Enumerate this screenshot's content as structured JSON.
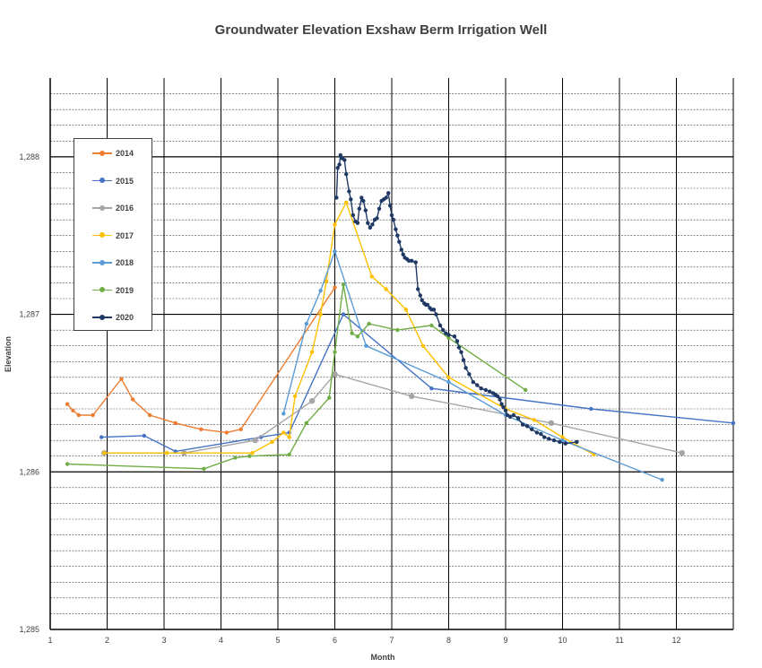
{
  "chart_data": {
    "type": "line",
    "title": "Groundwater Elevation Exshaw Berm Irrigation Well",
    "xlabel": "Month",
    "ylabel": "Elevation",
    "xlim": [
      1,
      13
    ],
    "ylim": [
      1285,
      1288.5
    ],
    "x_ticks": [
      "1",
      "2",
      "3",
      "4",
      "5",
      "6",
      "7",
      "8",
      "9",
      "10",
      "11",
      "12"
    ],
    "y_ticks": [
      "1,285",
      "1,286",
      "1,287",
      "1,288"
    ],
    "grid": true,
    "legend_position": "left",
    "series": [
      {
        "name": "2014",
        "color": "#ED7D31",
        "points": [
          [
            1.3,
            1286.43
          ],
          [
            1.4,
            1286.39
          ],
          [
            1.5,
            1286.36
          ],
          [
            1.75,
            1286.36
          ],
          [
            2.25,
            1286.59
          ],
          [
            2.45,
            1286.46
          ],
          [
            2.75,
            1286.36
          ],
          [
            3.2,
            1286.31
          ],
          [
            3.65,
            1286.27
          ],
          [
            4.1,
            1286.25
          ],
          [
            4.35,
            1286.27
          ],
          [
            6.0,
            1287.17
          ]
        ]
      },
      {
        "name": "2015",
        "color": "#4472C4",
        "points": [
          [
            1.9,
            1286.22
          ],
          [
            2.65,
            1286.23
          ],
          [
            3.2,
            1286.13
          ],
          [
            4.7,
            1286.22
          ],
          [
            5.2,
            1286.25
          ],
          [
            6.15,
            1287.0
          ],
          [
            7.7,
            1286.53
          ],
          [
            10.5,
            1286.4
          ],
          [
            13.0,
            1286.31
          ]
        ]
      },
      {
        "name": "2016",
        "color": "#A5A5A5",
        "points": [
          [
            1.95,
            1286.12
          ],
          [
            3.35,
            1286.12
          ],
          [
            4.6,
            1286.2
          ],
          [
            5.6,
            1286.45
          ],
          [
            6.0,
            1286.62
          ],
          [
            7.35,
            1286.48
          ],
          [
            9.8,
            1286.31
          ],
          [
            12.1,
            1286.12
          ]
        ]
      },
      {
        "name": "2017",
        "color": "#FFC000",
        "points": [
          [
            1.95,
            1286.12
          ],
          [
            3.05,
            1286.12
          ],
          [
            4.55,
            1286.12
          ],
          [
            4.9,
            1286.19
          ],
          [
            5.1,
            1286.25
          ],
          [
            5.2,
            1286.22
          ],
          [
            5.3,
            1286.48
          ],
          [
            5.6,
            1286.76
          ],
          [
            5.75,
            1287.0
          ],
          [
            5.85,
            1287.21
          ],
          [
            6.0,
            1287.57
          ],
          [
            6.2,
            1287.71
          ],
          [
            6.65,
            1287.24
          ],
          [
            6.9,
            1287.16
          ],
          [
            7.25,
            1287.03
          ],
          [
            7.55,
            1286.8
          ],
          [
            8.0,
            1286.6
          ],
          [
            9.0,
            1286.4
          ],
          [
            9.5,
            1286.33
          ],
          [
            10.0,
            1286.22
          ],
          [
            10.55,
            1286.11
          ]
        ]
      },
      {
        "name": "2018",
        "color": "#5B9BD5",
        "points": [
          [
            5.1,
            1286.37
          ],
          [
            5.5,
            1286.94
          ],
          [
            5.75,
            1287.15
          ],
          [
            6.0,
            1287.4
          ],
          [
            6.55,
            1286.8
          ],
          [
            8.0,
            1286.57
          ],
          [
            9.0,
            1286.36
          ],
          [
            10.0,
            1286.2
          ],
          [
            11.75,
            1285.95
          ]
        ]
      },
      {
        "name": "2019",
        "color": "#70AD47",
        "points": [
          [
            1.3,
            1286.05
          ],
          [
            3.7,
            1286.02
          ],
          [
            4.25,
            1286.09
          ],
          [
            4.5,
            1286.1
          ],
          [
            5.2,
            1286.11
          ],
          [
            5.5,
            1286.31
          ],
          [
            5.9,
            1286.47
          ],
          [
            6.0,
            1286.76
          ],
          [
            6.15,
            1287.19
          ],
          [
            6.3,
            1286.88
          ],
          [
            6.4,
            1286.86
          ],
          [
            6.6,
            1286.94
          ],
          [
            7.1,
            1286.9
          ],
          [
            7.7,
            1286.93
          ],
          [
            8.0,
            1286.85
          ],
          [
            9.35,
            1286.52
          ]
        ]
      },
      {
        "name": "2020",
        "color": "#1F3864",
        "points": [
          [
            6.03,
            1287.74
          ],
          [
            6.05,
            1287.93
          ],
          [
            6.08,
            1287.95
          ],
          [
            6.1,
            1288.01
          ],
          [
            6.13,
            1287.99
          ],
          [
            6.17,
            1287.98
          ],
          [
            6.2,
            1287.89
          ],
          [
            6.25,
            1287.78
          ],
          [
            6.28,
            1287.73
          ],
          [
            6.32,
            1287.63
          ],
          [
            6.36,
            1287.59
          ],
          [
            6.4,
            1287.58
          ],
          [
            6.43,
            1287.67
          ],
          [
            6.47,
            1287.74
          ],
          [
            6.5,
            1287.72
          ],
          [
            6.54,
            1287.66
          ],
          [
            6.58,
            1287.58
          ],
          [
            6.62,
            1287.55
          ],
          [
            6.66,
            1287.57
          ],
          [
            6.7,
            1287.6
          ],
          [
            6.74,
            1287.61
          ],
          [
            6.78,
            1287.67
          ],
          [
            6.82,
            1287.72
          ],
          [
            6.86,
            1287.73
          ],
          [
            6.9,
            1287.74
          ],
          [
            6.94,
            1287.77
          ],
          [
            6.97,
            1287.69
          ],
          [
            7.0,
            1287.63
          ],
          [
            7.03,
            1287.6
          ],
          [
            7.07,
            1287.54
          ],
          [
            7.1,
            1287.5
          ],
          [
            7.13,
            1287.46
          ],
          [
            7.17,
            1287.41
          ],
          [
            7.2,
            1287.38
          ],
          [
            7.23,
            1287.36
          ],
          [
            7.27,
            1287.35
          ],
          [
            7.3,
            1287.34
          ],
          [
            7.35,
            1287.34
          ],
          [
            7.42,
            1287.33
          ],
          [
            7.46,
            1287.16
          ],
          [
            7.5,
            1287.12
          ],
          [
            7.53,
            1287.09
          ],
          [
            7.57,
            1287.07
          ],
          [
            7.6,
            1287.06
          ],
          [
            7.63,
            1287.06
          ],
          [
            7.67,
            1287.04
          ],
          [
            7.7,
            1287.03
          ],
          [
            7.74,
            1287.03
          ],
          [
            7.78,
            1287.0
          ],
          [
            7.85,
            1286.93
          ],
          [
            7.9,
            1286.9
          ],
          [
            7.95,
            1286.88
          ],
          [
            8.0,
            1286.87
          ],
          [
            8.1,
            1286.86
          ],
          [
            8.15,
            1286.83
          ],
          [
            8.18,
            1286.79
          ],
          [
            8.22,
            1286.76
          ],
          [
            8.26,
            1286.71
          ],
          [
            8.3,
            1286.66
          ],
          [
            8.36,
            1286.62
          ],
          [
            8.43,
            1286.57
          ],
          [
            8.5,
            1286.55
          ],
          [
            8.57,
            1286.53
          ],
          [
            8.65,
            1286.52
          ],
          [
            8.72,
            1286.51
          ],
          [
            8.78,
            1286.5
          ],
          [
            8.82,
            1286.49
          ],
          [
            8.86,
            1286.48
          ],
          [
            8.9,
            1286.46
          ],
          [
            8.93,
            1286.43
          ],
          [
            8.96,
            1286.41
          ],
          [
            9.0,
            1286.39
          ],
          [
            9.03,
            1286.36
          ],
          [
            9.08,
            1286.35
          ],
          [
            9.14,
            1286.36
          ],
          [
            9.22,
            1286.34
          ],
          [
            9.3,
            1286.3
          ],
          [
            9.38,
            1286.29
          ],
          [
            9.46,
            1286.27
          ],
          [
            9.55,
            1286.25
          ],
          [
            9.62,
            1286.24
          ],
          [
            9.68,
            1286.22
          ],
          [
            9.76,
            1286.21
          ],
          [
            9.85,
            1286.2
          ],
          [
            9.95,
            1286.19
          ],
          [
            10.05,
            1286.18
          ],
          [
            10.25,
            1286.19
          ]
        ]
      }
    ]
  }
}
